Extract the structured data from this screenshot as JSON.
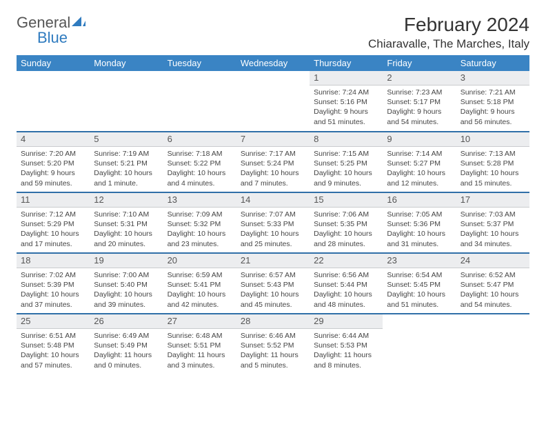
{
  "brand": {
    "name_gray": "General",
    "name_blue": "Blue"
  },
  "title": "February 2024",
  "location": "Chiaravalle, The Marches, Italy",
  "colors": {
    "header_bg": "#3a84c4",
    "row_divider": "#2f6fa8",
    "daynum_bg": "#ecedef",
    "text": "#333333"
  },
  "weekdays": [
    "Sunday",
    "Monday",
    "Tuesday",
    "Wednesday",
    "Thursday",
    "Friday",
    "Saturday"
  ],
  "weeks": [
    [
      null,
      null,
      null,
      null,
      {
        "d": "1",
        "sr": "7:24 AM",
        "ss": "5:16 PM",
        "dl": "9 hours and 51 minutes."
      },
      {
        "d": "2",
        "sr": "7:23 AM",
        "ss": "5:17 PM",
        "dl": "9 hours and 54 minutes."
      },
      {
        "d": "3",
        "sr": "7:21 AM",
        "ss": "5:18 PM",
        "dl": "9 hours and 56 minutes."
      }
    ],
    [
      {
        "d": "4",
        "sr": "7:20 AM",
        "ss": "5:20 PM",
        "dl": "9 hours and 59 minutes."
      },
      {
        "d": "5",
        "sr": "7:19 AM",
        "ss": "5:21 PM",
        "dl": "10 hours and 1 minute."
      },
      {
        "d": "6",
        "sr": "7:18 AM",
        "ss": "5:22 PM",
        "dl": "10 hours and 4 minutes."
      },
      {
        "d": "7",
        "sr": "7:17 AM",
        "ss": "5:24 PM",
        "dl": "10 hours and 7 minutes."
      },
      {
        "d": "8",
        "sr": "7:15 AM",
        "ss": "5:25 PM",
        "dl": "10 hours and 9 minutes."
      },
      {
        "d": "9",
        "sr": "7:14 AM",
        "ss": "5:27 PM",
        "dl": "10 hours and 12 minutes."
      },
      {
        "d": "10",
        "sr": "7:13 AM",
        "ss": "5:28 PM",
        "dl": "10 hours and 15 minutes."
      }
    ],
    [
      {
        "d": "11",
        "sr": "7:12 AM",
        "ss": "5:29 PM",
        "dl": "10 hours and 17 minutes."
      },
      {
        "d": "12",
        "sr": "7:10 AM",
        "ss": "5:31 PM",
        "dl": "10 hours and 20 minutes."
      },
      {
        "d": "13",
        "sr": "7:09 AM",
        "ss": "5:32 PM",
        "dl": "10 hours and 23 minutes."
      },
      {
        "d": "14",
        "sr": "7:07 AM",
        "ss": "5:33 PM",
        "dl": "10 hours and 25 minutes."
      },
      {
        "d": "15",
        "sr": "7:06 AM",
        "ss": "5:35 PM",
        "dl": "10 hours and 28 minutes."
      },
      {
        "d": "16",
        "sr": "7:05 AM",
        "ss": "5:36 PM",
        "dl": "10 hours and 31 minutes."
      },
      {
        "d": "17",
        "sr": "7:03 AM",
        "ss": "5:37 PM",
        "dl": "10 hours and 34 minutes."
      }
    ],
    [
      {
        "d": "18",
        "sr": "7:02 AM",
        "ss": "5:39 PM",
        "dl": "10 hours and 37 minutes."
      },
      {
        "d": "19",
        "sr": "7:00 AM",
        "ss": "5:40 PM",
        "dl": "10 hours and 39 minutes."
      },
      {
        "d": "20",
        "sr": "6:59 AM",
        "ss": "5:41 PM",
        "dl": "10 hours and 42 minutes."
      },
      {
        "d": "21",
        "sr": "6:57 AM",
        "ss": "5:43 PM",
        "dl": "10 hours and 45 minutes."
      },
      {
        "d": "22",
        "sr": "6:56 AM",
        "ss": "5:44 PM",
        "dl": "10 hours and 48 minutes."
      },
      {
        "d": "23",
        "sr": "6:54 AM",
        "ss": "5:45 PM",
        "dl": "10 hours and 51 minutes."
      },
      {
        "d": "24",
        "sr": "6:52 AM",
        "ss": "5:47 PM",
        "dl": "10 hours and 54 minutes."
      }
    ],
    [
      {
        "d": "25",
        "sr": "6:51 AM",
        "ss": "5:48 PM",
        "dl": "10 hours and 57 minutes."
      },
      {
        "d": "26",
        "sr": "6:49 AM",
        "ss": "5:49 PM",
        "dl": "11 hours and 0 minutes."
      },
      {
        "d": "27",
        "sr": "6:48 AM",
        "ss": "5:51 PM",
        "dl": "11 hours and 3 minutes."
      },
      {
        "d": "28",
        "sr": "6:46 AM",
        "ss": "5:52 PM",
        "dl": "11 hours and 5 minutes."
      },
      {
        "d": "29",
        "sr": "6:44 AM",
        "ss": "5:53 PM",
        "dl": "11 hours and 8 minutes."
      },
      null,
      null
    ]
  ],
  "labels": {
    "sunrise": "Sunrise:",
    "sunset": "Sunset:",
    "daylight": "Daylight:"
  }
}
